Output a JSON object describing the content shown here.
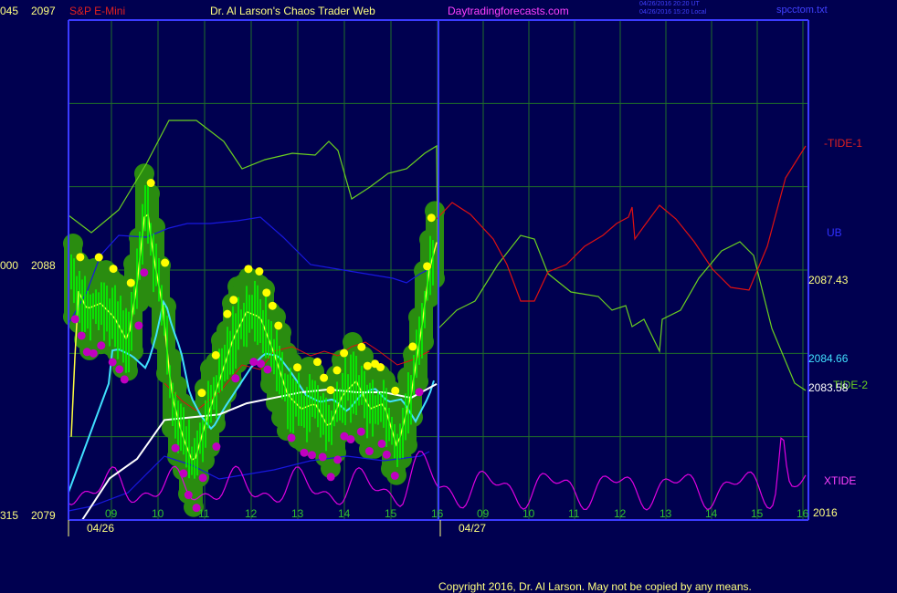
{
  "header": {
    "left_code": "045",
    "top_price": "2097",
    "symbol": "S&P E-Mini",
    "author": "Dr. Al Larson's Chaos Trader Web",
    "site": "Daytradingforecasts.com",
    "timestamp_ut": "04/26/2016 20:20 UT",
    "timestamp_local": "04/26/2016 15:20 Local",
    "filename": "spcctom.txt"
  },
  "left_axis": {
    "mid_code": "000",
    "mid_price": "2088",
    "bottom_code": "315",
    "bottom_price": "2079"
  },
  "right_labels": {
    "tide1": "-TIDE-1",
    "ub": "UB",
    "price1": "2087.43",
    "price2": "2084.66",
    "price3": "2083.58",
    "tide2": "-TIDE-2",
    "xtide": "XTIDE",
    "year": "2016"
  },
  "colors": {
    "background": "#000050",
    "axis": "#3b3bff",
    "grid": "#1f6e2a",
    "price_bars": "#00ff00",
    "green_bubbles": "#2a8c10",
    "yellow_dots": "#ffff00",
    "magenta_dots": "#c000c0",
    "tide1": "#e01010",
    "tide2": "#6ad020",
    "ub": "#1818e0",
    "xtide": "#e000e0",
    "cyan_ma": "#40e0ff",
    "white_ma": "#ffffff",
    "yellow_ma": "#ffff40"
  },
  "footer": {
    "copyright": "Copyright 2016, Dr. Al Larson. May not be copied by any means."
  },
  "chart_data": {
    "type": "line",
    "title": "S&P E-Mini",
    "ylim": [
      2079,
      2097
    ],
    "y_ticks": [
      "2079",
      "2088",
      "2097"
    ],
    "x_hour_labels": [
      "09",
      "10",
      "11",
      "12",
      "13",
      "14",
      "15",
      "16",
      "09",
      "10",
      "11",
      "12",
      "13",
      "14",
      "15",
      "16"
    ],
    "date_labels": [
      "04/26",
      "04/27"
    ],
    "last_values": {
      "price": 2087.43,
      "cyan_ma": 2084.66,
      "white_ma": 2083.58
    },
    "series": [
      {
        "name": "-TIDE-1"
      },
      {
        "name": "UB"
      },
      {
        "name": "-TIDE-2"
      },
      {
        "name": "XTIDE"
      }
    ]
  }
}
